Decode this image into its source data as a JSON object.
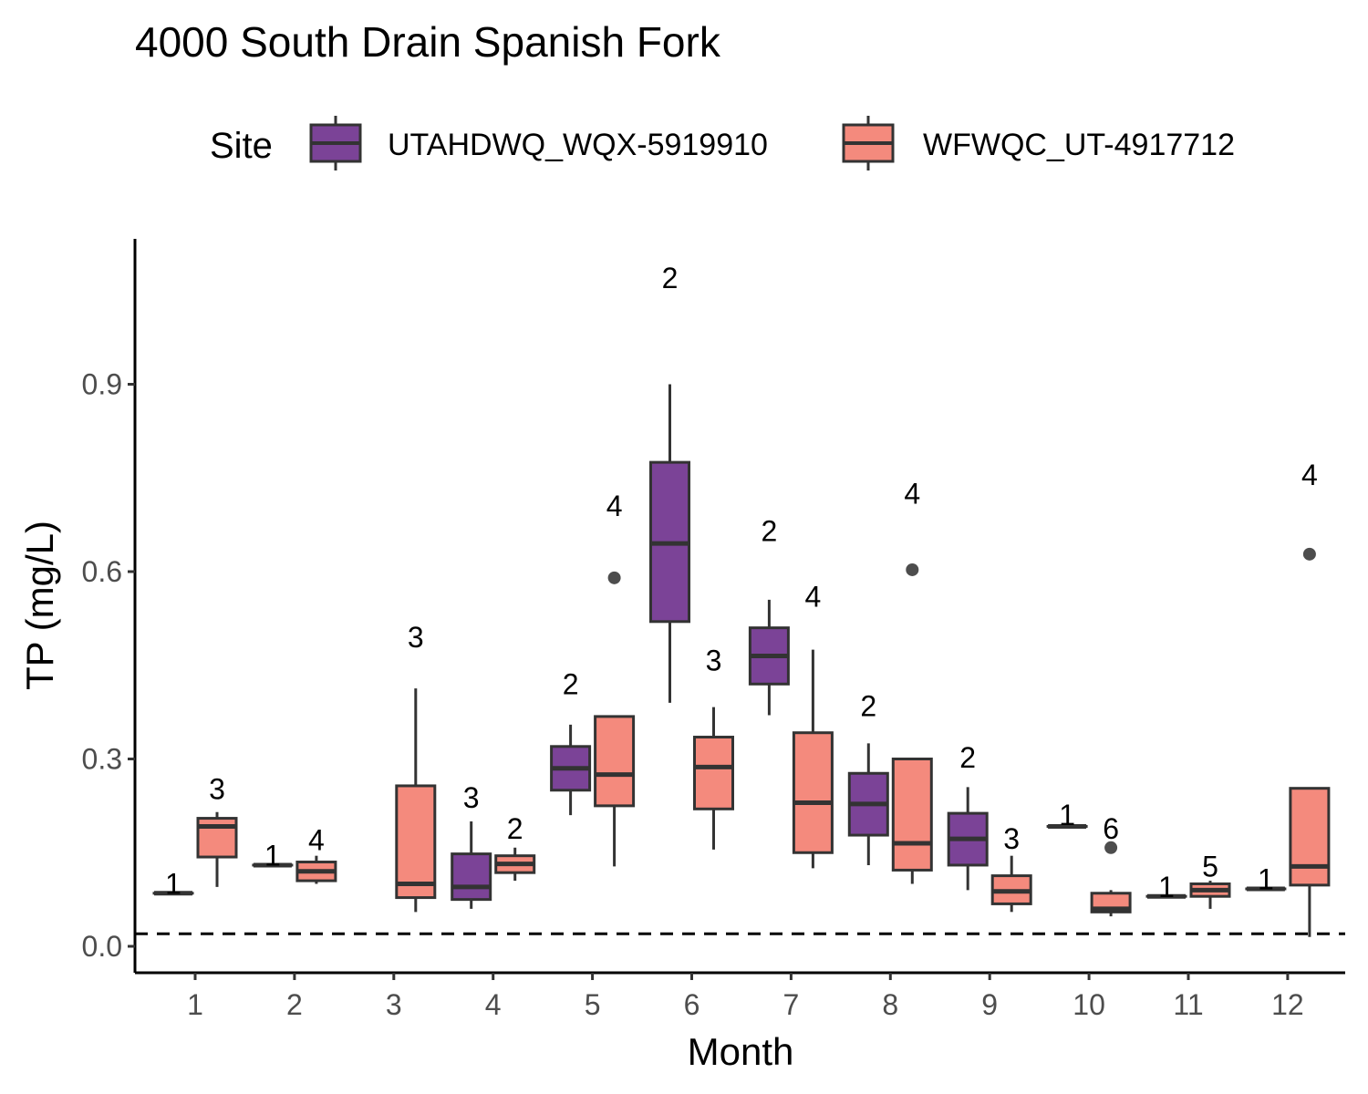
{
  "chart_data": {
    "type": "box",
    "title": "4000 South Drain Spanish Fork",
    "xlabel": "Month",
    "ylabel": "TP (mg/L)",
    "ylim": [
      -0.04,
      1.13
    ],
    "yticks": [
      0.0,
      0.3,
      0.6,
      0.9
    ],
    "ytick_labels": [
      "0.0",
      "0.3",
      "0.6",
      "0.9"
    ],
    "categories": [
      "1",
      "2",
      "3",
      "4",
      "5",
      "6",
      "7",
      "8",
      "9",
      "10",
      "11",
      "12"
    ],
    "reference_line": 0.02,
    "grid": false,
    "legend": {
      "title": "Site",
      "position": "top"
    },
    "series": [
      {
        "name": "UTAHDWQ_WQX-5919910",
        "color": "#7b4397",
        "boxes": [
          {
            "month": "1",
            "min": 0.085,
            "q1": 0.085,
            "median": 0.085,
            "q3": 0.085,
            "max": 0.085,
            "outliers": [],
            "n": 1,
            "label_y": 0.1
          },
          {
            "month": "2",
            "min": 0.13,
            "q1": 0.13,
            "median": 0.13,
            "q3": 0.13,
            "max": 0.13,
            "outliers": [],
            "n": 1,
            "label_y": 0.145
          },
          null,
          {
            "month": "4",
            "min": 0.06,
            "q1": 0.075,
            "median": 0.095,
            "q3": 0.148,
            "max": 0.2,
            "outliers": [],
            "n": 3,
            "label_y": 0.238
          },
          {
            "month": "5",
            "min": 0.21,
            "q1": 0.25,
            "median": 0.285,
            "q3": 0.32,
            "max": 0.355,
            "outliers": [],
            "n": 2,
            "label_y": 0.42
          },
          {
            "month": "6",
            "min": 0.39,
            "q1": 0.52,
            "median": 0.645,
            "q3": 0.775,
            "max": 0.9,
            "outliers": [],
            "n": 2,
            "label_y": 1.07
          },
          {
            "month": "7",
            "min": 0.37,
            "q1": 0.42,
            "median": 0.465,
            "q3": 0.51,
            "max": 0.555,
            "outliers": [],
            "n": 2,
            "label_y": 0.665
          },
          {
            "month": "8",
            "min": 0.13,
            "q1": 0.178,
            "median": 0.228,
            "q3": 0.277,
            "max": 0.325,
            "outliers": [],
            "n": 2,
            "label_y": 0.385
          },
          {
            "month": "9",
            "min": 0.09,
            "q1": 0.13,
            "median": 0.172,
            "q3": 0.213,
            "max": 0.255,
            "outliers": [],
            "n": 2,
            "label_y": 0.302
          },
          {
            "month": "10",
            "min": 0.192,
            "q1": 0.192,
            "median": 0.192,
            "q3": 0.192,
            "max": 0.192,
            "outliers": [],
            "n": 1,
            "label_y": 0.21
          },
          {
            "month": "11",
            "min": 0.08,
            "q1": 0.08,
            "median": 0.08,
            "q3": 0.08,
            "max": 0.08,
            "outliers": [],
            "n": 1,
            "label_y": 0.095
          },
          {
            "month": "12",
            "min": 0.092,
            "q1": 0.092,
            "median": 0.092,
            "q3": 0.092,
            "max": 0.092,
            "outliers": [],
            "n": 1,
            "label_y": 0.107
          }
        ]
      },
      {
        "name": "WFWQC_UT-4917712",
        "color": "#f48a7d",
        "boxes": [
          {
            "month": "1",
            "min": 0.095,
            "q1": 0.143,
            "median": 0.192,
            "q3": 0.205,
            "max": 0.215,
            "outliers": [],
            "n": 3,
            "label_y": 0.252
          },
          {
            "month": "2",
            "min": 0.1,
            "q1": 0.105,
            "median": 0.12,
            "q3": 0.135,
            "max": 0.145,
            "outliers": [],
            "n": 4,
            "label_y": 0.17
          },
          {
            "month": "3",
            "min": 0.055,
            "q1": 0.078,
            "median": 0.1,
            "q3": 0.257,
            "max": 0.413,
            "outliers": [],
            "n": 3,
            "label_y": 0.495
          },
          {
            "month": "4",
            "min": 0.105,
            "q1": 0.118,
            "median": 0.132,
            "q3": 0.145,
            "max": 0.158,
            "outliers": [],
            "n": 2,
            "label_y": 0.188
          },
          {
            "month": "5",
            "min": 0.128,
            "q1": 0.225,
            "median": 0.275,
            "q3": 0.368,
            "max": 0.368,
            "outliers": [
              0.59
            ],
            "n": 4,
            "label_y": 0.705
          },
          {
            "month": "6",
            "min": 0.155,
            "q1": 0.22,
            "median": 0.287,
            "q3": 0.335,
            "max": 0.383,
            "outliers": [],
            "n": 3,
            "label_y": 0.458
          },
          {
            "month": "7",
            "min": 0.125,
            "q1": 0.15,
            "median": 0.23,
            "q3": 0.342,
            "max": 0.475,
            "outliers": [],
            "n": 4,
            "label_y": 0.56
          },
          {
            "month": "8",
            "min": 0.1,
            "q1": 0.122,
            "median": 0.165,
            "q3": 0.3,
            "max": 0.3,
            "outliers": [
              0.603
            ],
            "n": 4,
            "label_y": 0.725
          },
          {
            "month": "9",
            "min": 0.055,
            "q1": 0.068,
            "median": 0.088,
            "q3": 0.113,
            "max": 0.145,
            "outliers": [],
            "n": 3,
            "label_y": 0.172
          },
          {
            "month": "10",
            "min": 0.048,
            "q1": 0.055,
            "median": 0.06,
            "q3": 0.085,
            "max": 0.09,
            "outliers": [
              0.158
            ],
            "n": 6,
            "label_y": 0.188
          },
          {
            "month": "11",
            "min": 0.06,
            "q1": 0.08,
            "median": 0.09,
            "q3": 0.1,
            "max": 0.105,
            "outliers": [],
            "n": 5,
            "label_y": 0.128
          },
          {
            "month": "12",
            "min": 0.015,
            "q1": 0.098,
            "median": 0.128,
            "q3": 0.253,
            "max": 0.253,
            "outliers": [
              0.628
            ],
            "n": 4,
            "label_y": 0.755
          }
        ]
      }
    ]
  }
}
